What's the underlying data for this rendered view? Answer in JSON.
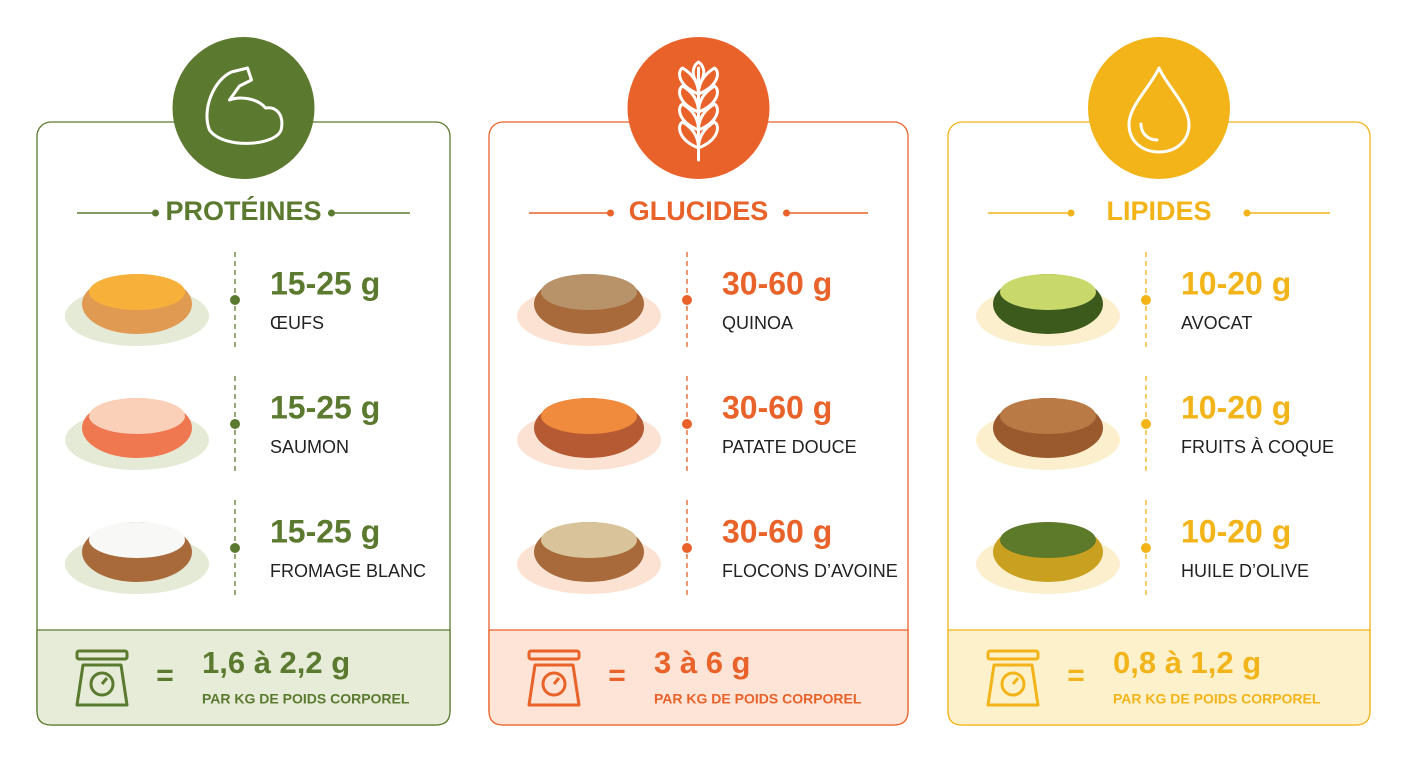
{
  "columns": [
    {
      "title": "PROTÉINES",
      "items": [
        {
          "amount": "15-25 g",
          "name": "ŒUFS"
        },
        {
          "amount": "15-25 g",
          "name": "SAUMON"
        },
        {
          "amount": "15-25 g",
          "name": "FROMAGE BLANC"
        }
      ],
      "footer": {
        "equals": "=",
        "amount": "1,6 à 2,2 g",
        "unit": "PAR KG DE POIDS CORPOREL"
      }
    },
    {
      "title": "GLUCIDES",
      "items": [
        {
          "amount": "30-60 g",
          "name": "QUINOA"
        },
        {
          "amount": "30-60 g",
          "name": "PATATE DOUCE"
        },
        {
          "amount": "30-60 g",
          "name": "FLOCONS D’AVOINE"
        }
      ],
      "footer": {
        "equals": "=",
        "amount": "3 à 6 g",
        "unit": "PAR KG DE POIDS CORPOREL"
      }
    },
    {
      "title": "LIPIDES",
      "items": [
        {
          "amount": "10-20 g",
          "name": "AVOCAT"
        },
        {
          "amount": "10-20 g",
          "name": "FRUITS À COQUE"
        },
        {
          "amount": "10-20 g",
          "name": "HUILE D’OLIVE"
        }
      ],
      "footer": {
        "equals": "=",
        "amount": "0,8 à 1,2 g",
        "unit": "PAR KG DE POIDS CORPOREL"
      }
    }
  ]
}
